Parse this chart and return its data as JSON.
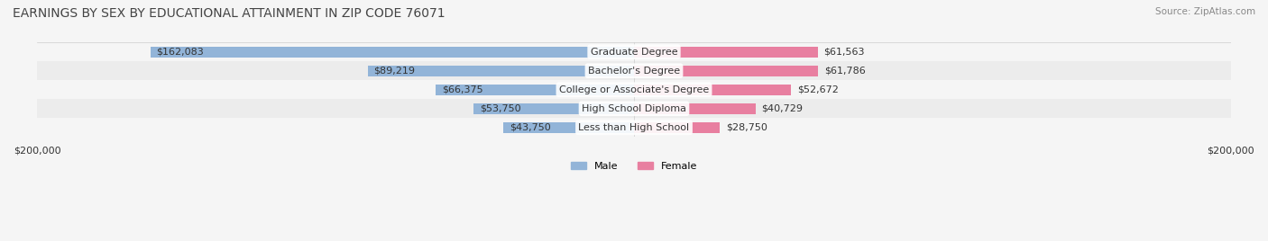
{
  "title": "EARNINGS BY SEX BY EDUCATIONAL ATTAINMENT IN ZIP CODE 76071",
  "source": "Source: ZipAtlas.com",
  "categories": [
    "Less than High School",
    "High School Diploma",
    "College or Associate's Degree",
    "Bachelor's Degree",
    "Graduate Degree"
  ],
  "male_values": [
    43750,
    53750,
    66375,
    89219,
    162083
  ],
  "female_values": [
    28750,
    40729,
    52672,
    61786,
    61563
  ],
  "male_color": "#92b4d8",
  "female_color": "#e87fa0",
  "bar_label_color_male": "#444444",
  "bar_label_color_female": "#444444",
  "label_color_inside": "#ffffff",
  "max_value": 200000,
  "background_color": "#f5f5f5",
  "row_bg_color": "#ffffff",
  "row_alt_bg_color": "#e8e8e8",
  "title_fontsize": 10,
  "source_fontsize": 7.5,
  "label_fontsize": 8,
  "bar_height": 0.35,
  "figsize": [
    14.06,
    2.68
  ],
  "dpi": 100
}
